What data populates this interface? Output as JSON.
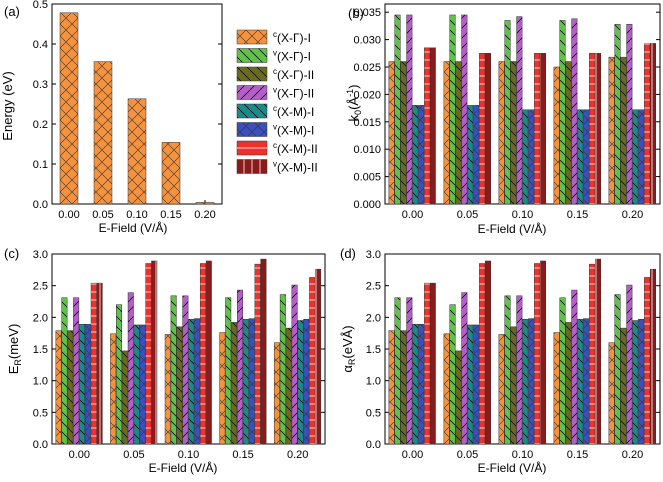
{
  "chart_data": [
    {
      "id": "a",
      "type": "bar",
      "panel_label": "(a)",
      "ylabel": "Energy (eV)",
      "xlabel": "E-Field (V/Å)",
      "categories": [
        "0.00",
        "0.05",
        "0.10",
        "0.15",
        "0.20"
      ],
      "values": [
        0.478,
        0.356,
        0.263,
        0.154,
        0.004
      ],
      "ylim": [
        0,
        0.5
      ],
      "yticks": [
        "0.0",
        "0.1",
        "0.2",
        "0.3",
        "0.4",
        "0.5"
      ],
      "ytick_values": [
        0,
        0.1,
        0.2,
        0.3,
        0.4,
        0.5
      ],
      "color": "#f5923e"
    },
    {
      "id": "b",
      "type": "bar",
      "panel_label": "(b)",
      "ylabel": "k0(Å-1)",
      "xlabel": "E-Field (V/Å)",
      "categories": [
        "0.00",
        "0.05",
        "0.10",
        "0.15",
        "0.20"
      ],
      "ylim": [
        0,
        0.0365
      ],
      "yticks": [
        "0.000",
        "0.005",
        "0.010",
        "0.015",
        "0.020",
        "0.025",
        "0.030",
        "0.035"
      ],
      "ytick_values": [
        0,
        0.005,
        0.01,
        0.015,
        0.02,
        0.025,
        0.03,
        0.035
      ],
      "series": [
        {
          "name": "c(X-Γ)-I",
          "values": [
            0.026,
            0.026,
            0.026,
            0.025,
            0.0268
          ]
        },
        {
          "name": "v(X-Γ)-I",
          "values": [
            0.0345,
            0.0345,
            0.0335,
            0.0335,
            0.0328
          ]
        },
        {
          "name": "c(X-Γ)-II",
          "values": [
            0.026,
            0.026,
            0.026,
            0.026,
            0.0268
          ]
        },
        {
          "name": "v(X-Γ)-II",
          "values": [
            0.0345,
            0.0345,
            0.0342,
            0.0338,
            0.0328
          ]
        },
        {
          "name": "c(X-M)-I",
          "values": [
            0.018,
            0.018,
            0.0172,
            0.0172,
            0.0172
          ]
        },
        {
          "name": "v(X-M)-I",
          "values": [
            0.018,
            0.018,
            0.0172,
            0.0172,
            0.0172
          ]
        },
        {
          "name": "c(X-M)-II",
          "values": [
            0.0285,
            0.0275,
            0.0275,
            0.0275,
            0.0293
          ]
        },
        {
          "name": "v(X-M)-II",
          "values": [
            0.0285,
            0.0275,
            0.0275,
            0.0275,
            0.0293
          ]
        }
      ]
    },
    {
      "id": "c",
      "type": "bar",
      "panel_label": "(c)",
      "ylabel": "ER(meV)",
      "xlabel": "E-Field (V/Å)",
      "categories": [
        "0.00",
        "0.05",
        "0.10",
        "0.15",
        "0.20"
      ],
      "ylim": [
        0,
        3.0
      ],
      "yticks": [
        "0.0",
        "0.5",
        "1.0",
        "1.5",
        "2.0",
        "2.5",
        "3.0"
      ],
      "ytick_values": [
        0,
        0.5,
        1.0,
        1.5,
        2.0,
        2.5,
        3.0
      ],
      "series": [
        {
          "name": "c(X-Γ)-I",
          "values": [
            1.79,
            1.74,
            1.73,
            1.76,
            1.6
          ]
        },
        {
          "name": "v(X-Γ)-I",
          "values": [
            2.31,
            2.2,
            2.34,
            2.31,
            2.36
          ]
        },
        {
          "name": "c(X-Γ)-II",
          "values": [
            1.79,
            1.47,
            1.85,
            1.92,
            1.83
          ]
        },
        {
          "name": "v(X-Γ)-II",
          "values": [
            2.31,
            2.39,
            2.34,
            2.43,
            2.51
          ]
        },
        {
          "name": "c(X-M)-I",
          "values": [
            1.89,
            1.88,
            1.97,
            1.97,
            1.95
          ]
        },
        {
          "name": "v(X-M)-I",
          "values": [
            1.89,
            1.88,
            1.98,
            1.98,
            1.97
          ]
        },
        {
          "name": "c(X-M)-II",
          "values": [
            2.54,
            2.85,
            2.85,
            2.84,
            2.63
          ]
        },
        {
          "name": "v(X-M)-II",
          "values": [
            2.54,
            2.89,
            2.89,
            2.92,
            2.76
          ]
        }
      ]
    },
    {
      "id": "d",
      "type": "bar",
      "panel_label": "(d)",
      "ylabel": "αR(eVÅ)",
      "xlabel": "E-Field (V/Å)",
      "categories": [
        "0.00",
        "0.05",
        "0.10",
        "0.15",
        "0.20"
      ],
      "ylim": [
        0,
        3.0
      ],
      "yticks": [
        "0.0",
        "0.5",
        "1.0",
        "1.5",
        "2.0",
        "2.5",
        "3.0"
      ],
      "ytick_values": [
        0,
        0.5,
        1.0,
        1.5,
        2.0,
        2.5,
        3.0
      ],
      "series": [
        {
          "name": "c(X-Γ)-I",
          "values": [
            1.79,
            1.74,
            1.73,
            1.76,
            1.6
          ]
        },
        {
          "name": "v(X-Γ)-I",
          "values": [
            2.31,
            2.2,
            2.34,
            2.31,
            2.36
          ]
        },
        {
          "name": "c(X-Γ)-II",
          "values": [
            1.79,
            1.47,
            1.85,
            1.92,
            1.83
          ]
        },
        {
          "name": "v(X-Γ)-II",
          "values": [
            2.31,
            2.39,
            2.34,
            2.43,
            2.51
          ]
        },
        {
          "name": "c(X-M)-I",
          "values": [
            1.89,
            1.88,
            1.97,
            1.97,
            1.95
          ]
        },
        {
          "name": "v(X-M)-I",
          "values": [
            1.89,
            1.88,
            1.98,
            1.98,
            1.97
          ]
        },
        {
          "name": "c(X-M)-II",
          "values": [
            2.54,
            2.85,
            2.85,
            2.84,
            2.63
          ]
        },
        {
          "name": "v(X-M)-II",
          "values": [
            2.54,
            2.89,
            2.89,
            2.92,
            2.76
          ]
        }
      ]
    }
  ],
  "legend": {
    "items": [
      {
        "sup": "c",
        "label": "(X-Γ)-I",
        "color": "#f5923e",
        "hatch": "cross"
      },
      {
        "sup": "v",
        "label": "(X-Γ)-I",
        "color": "#5fc34a",
        "hatch": "back"
      },
      {
        "sup": "c",
        "label": "(X-Γ)-II",
        "color": "#6b6b1e",
        "hatch": "back"
      },
      {
        "sup": "v",
        "label": "(X-Γ)-II",
        "color": "#b45ec8",
        "hatch": "fwd"
      },
      {
        "sup": "c",
        "label": "(X-M)-I",
        "color": "#1a8a8a",
        "hatch": "back"
      },
      {
        "sup": "v",
        "label": "(X-M)-I",
        "color": "#3a4fc0",
        "hatch": "cross"
      },
      {
        "sup": "c",
        "label": "(X-M)-II",
        "color": "#f0302a",
        "hatch": "horiz"
      },
      {
        "sup": "v",
        "label": "(X-M)-II",
        "color": "#8c1a1a",
        "hatch": "vert"
      }
    ]
  }
}
